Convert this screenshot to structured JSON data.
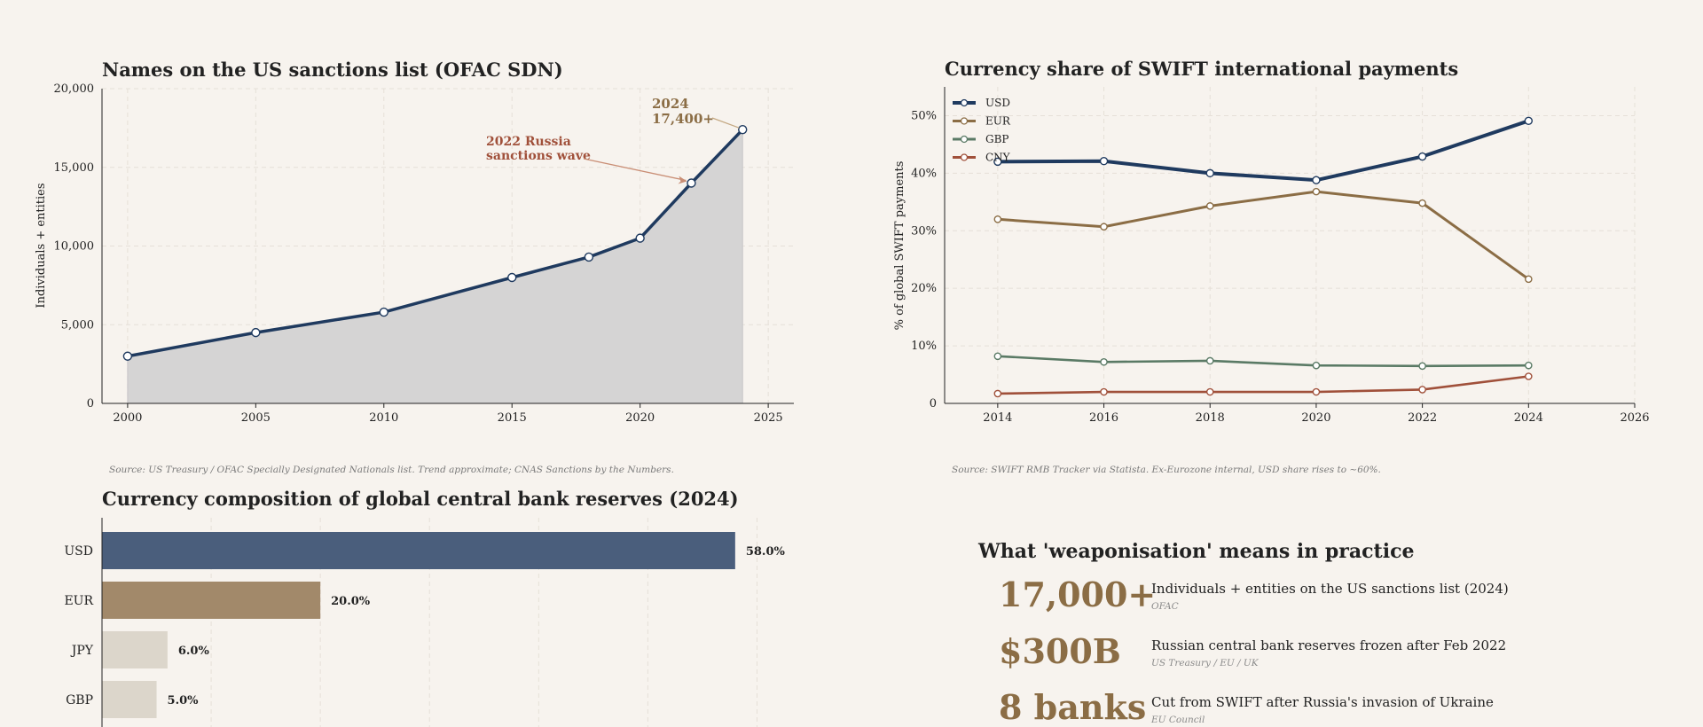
{
  "chart_data": [
    {
      "type": "area",
      "title": "Names on the US sanctions list (OFAC SDN)",
      "ylabel": "Individuals + entities",
      "x": [
        2000,
        2005,
        2010,
        2015,
        2018,
        2020,
        2022,
        2024
      ],
      "values": [
        3000,
        4500,
        5800,
        8000,
        9300,
        10500,
        14000,
        17400
      ],
      "xlim": [
        1999,
        2026
      ],
      "ylim": [
        0,
        20000
      ],
      "xticks": [
        2000,
        2005,
        2010,
        2015,
        2020,
        2025
      ],
      "xtick_labels": [
        "2000",
        "2005",
        "2010",
        "2015",
        "2020",
        "2025"
      ],
      "yticks": [
        0,
        5000,
        10000,
        15000,
        20000
      ],
      "ytick_labels": [
        "0",
        "5,000",
        "10,000",
        "15,000",
        "20,000"
      ],
      "grid": true,
      "colors": {
        "line": "#1f3a5f",
        "fill": "#d5d4d4"
      },
      "annotations": [
        {
          "lines": [
            "2022 Russia",
            "sanctions wave"
          ],
          "x": 2022,
          "y": 14000,
          "color": "#a0503a"
        },
        {
          "lines": [
            "2024",
            "17,400+"
          ],
          "x": 2024,
          "y": 17400,
          "color": "#8b6d45"
        }
      ],
      "source": "Source: US Treasury / OFAC Specially Designated Nationals list. Trend approximate; CNAS Sanctions by the Numbers."
    },
    {
      "type": "line",
      "title": "Currency share of SWIFT international payments",
      "ylabel": "% of global SWIFT payments",
      "x": [
        2014,
        2016,
        2018,
        2020,
        2022,
        2024
      ],
      "series": [
        {
          "name": "USD",
          "values": [
            42.0,
            42.1,
            40.0,
            38.8,
            42.9,
            49.1
          ],
          "color": "#1f3a5f"
        },
        {
          "name": "EUR",
          "values": [
            32.0,
            30.7,
            34.3,
            36.8,
            34.8,
            21.6
          ],
          "color": "#8b6d45"
        },
        {
          "name": "GBP",
          "values": [
            8.2,
            7.2,
            7.4,
            6.6,
            6.5,
            6.6
          ],
          "color": "#5a7a65"
        },
        {
          "name": "CNY",
          "values": [
            1.7,
            2.0,
            2.0,
            2.0,
            2.4,
            4.7
          ],
          "color": "#a0503a"
        }
      ],
      "xlim": [
        2013,
        2026
      ],
      "ylim": [
        0,
        55
      ],
      "xticks": [
        2014,
        2016,
        2018,
        2020,
        2022,
        2024,
        2026
      ],
      "xtick_labels": [
        "2014",
        "2016",
        "2018",
        "2020",
        "2022",
        "2024",
        "2026"
      ],
      "yticks": [
        0,
        10,
        20,
        30,
        40,
        50
      ],
      "ytick_labels": [
        "0",
        "10%",
        "20%",
        "30%",
        "40%",
        "50%"
      ],
      "grid": true,
      "legend": "top-left",
      "source": "Source: SWIFT RMB Tracker via Statista. Ex-Eurozone internal, USD share rises to ~60%."
    },
    {
      "type": "bar",
      "orientation": "horizontal",
      "title": "Currency composition of global central bank reserves (2024)",
      "categories": [
        "USD",
        "EUR",
        "JPY",
        "GBP"
      ],
      "values": [
        58.0,
        20.0,
        6.0,
        5.0
      ],
      "value_labels": [
        "58.0%",
        "20.0%",
        "6.0%",
        "5.0%"
      ],
      "colors": [
        "#4a5e7c",
        "#a2896a",
        "#dcd6cb",
        "#dcd6cb"
      ],
      "xlim": [
        0,
        65
      ],
      "grid": true
    }
  ],
  "kpi": {
    "title": "What 'weaponisation' means in practice",
    "items": [
      {
        "value": "17,000+",
        "desc": "Individuals + entities on the US sanctions list (2024)",
        "source": "OFAC"
      },
      {
        "value": "$300B",
        "desc": "Russian central bank reserves frozen after Feb 2022",
        "source": "US Treasury / EU / UK"
      },
      {
        "value": "8 banks",
        "desc": "Cut from SWIFT after Russia's invasion of Ukraine",
        "source": "EU Council"
      }
    ]
  }
}
